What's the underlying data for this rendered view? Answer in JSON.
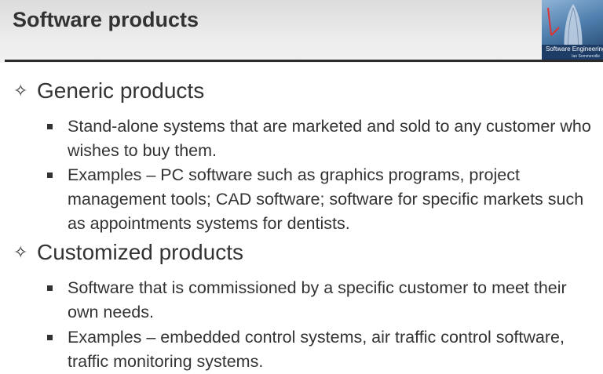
{
  "slide": {
    "title": "Software products",
    "book_cover": {
      "title_text": "Software Engineering",
      "author_text": "Ian Sommerville"
    },
    "sections": [
      {
        "heading": "Generic products",
        "bullets": [
          "Stand-alone systems that are marketed and sold to any customer who wishes to buy them.",
          "Examples – PC software such as graphics programs, project management tools; CAD software; software for specific markets such as appointments systems for dentists."
        ]
      },
      {
        "heading": "Customized products",
        "bullets": [
          "Software that is commissioned by a specific customer to meet their own needs.",
          "Examples – embedded control systems, air traffic control software, traffic monitoring systems."
        ]
      }
    ],
    "colors": {
      "text": "#333333",
      "rule": "#2b2b2b",
      "header_bg": "#e6e6e6"
    }
  }
}
